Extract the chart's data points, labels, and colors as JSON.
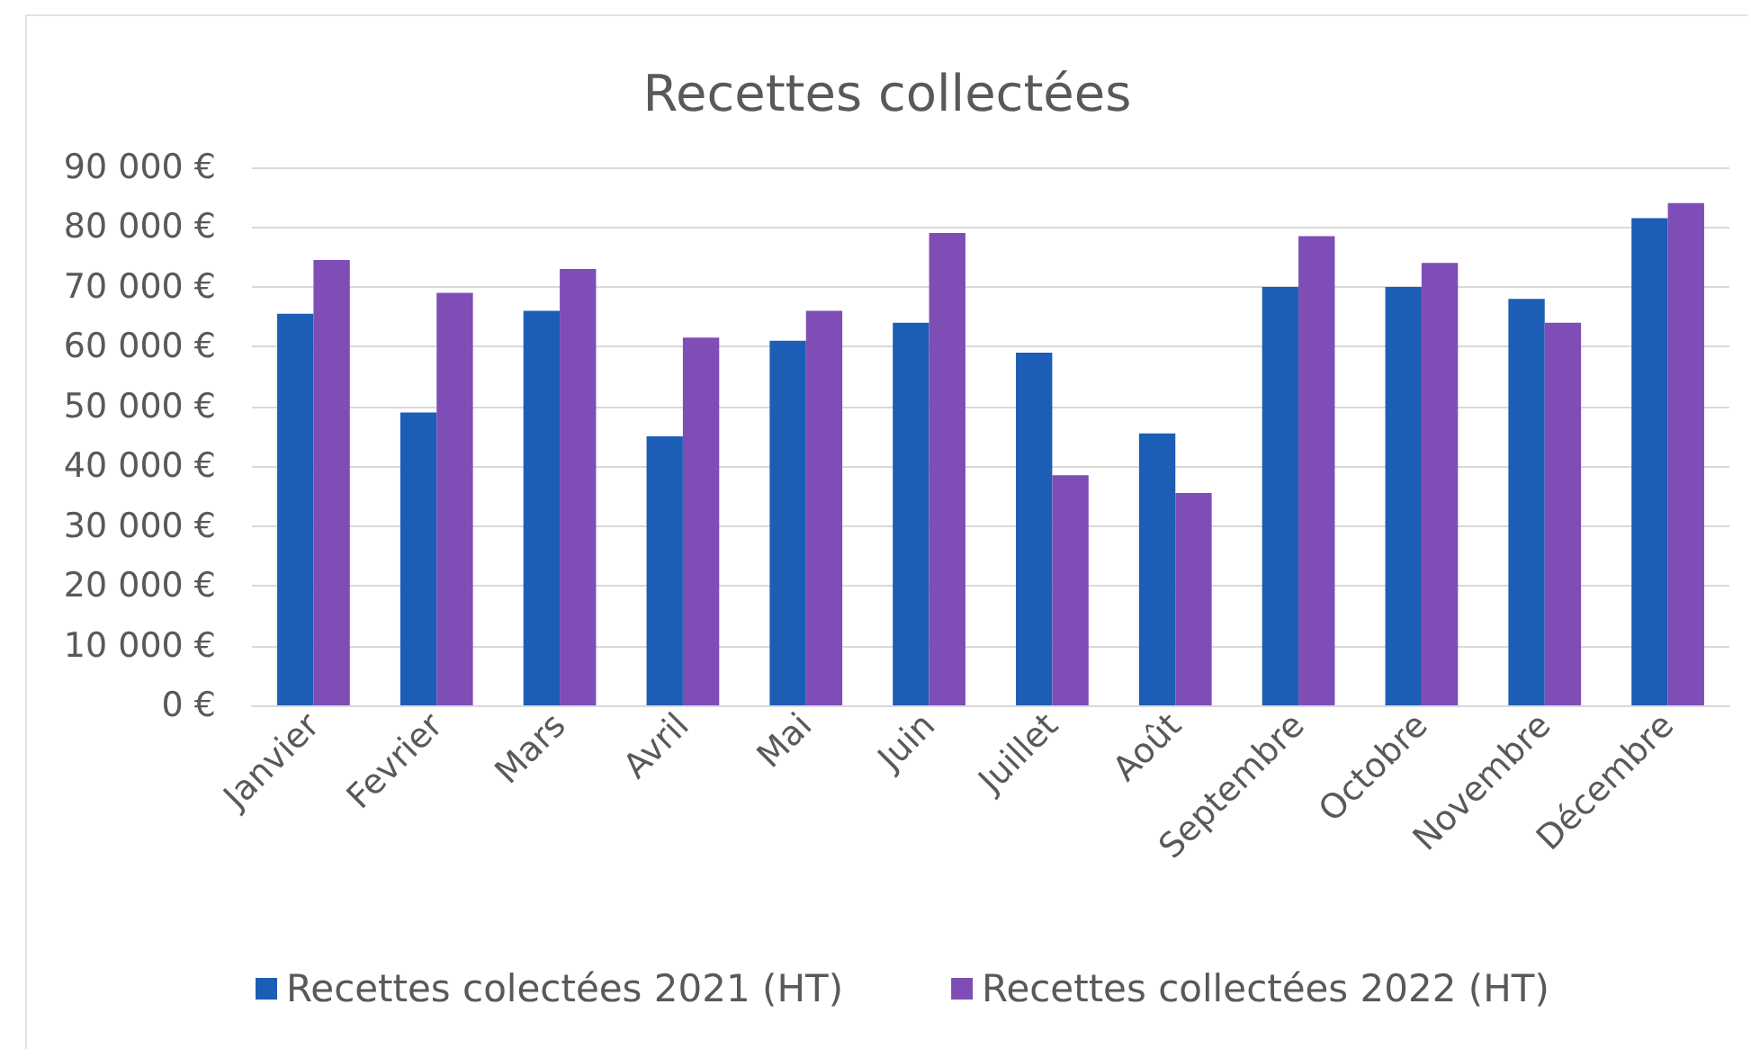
{
  "chart_data": {
    "type": "bar",
    "title": "Recettes collectées",
    "categories": [
      "Janvier",
      "Fevrier",
      "Mars",
      "Avril",
      "Mai",
      "Juin",
      "Juillet",
      "Août",
      "Septembre",
      "Octobre",
      "Novembre",
      "Décembre"
    ],
    "series": [
      {
        "name": "Recettes colectées 2021 (HT)",
        "color": "#1c5db5",
        "values": [
          65500,
          49000,
          66000,
          45000,
          61000,
          64000,
          59000,
          45500,
          70000,
          70000,
          68000,
          81500
        ]
      },
      {
        "name": "Recettes collectées 2022 (HT)",
        "color": "#7e4db6",
        "values": [
          74500,
          69000,
          73000,
          61500,
          66000,
          79000,
          38500,
          35500,
          78500,
          74000,
          64000,
          84000
        ]
      }
    ],
    "ylim": [
      0,
      90000
    ],
    "yticks": [
      {
        "value": 0,
        "label": "0 €"
      },
      {
        "value": 10000,
        "label": "10 000 €"
      },
      {
        "value": 20000,
        "label": "20 000 €"
      },
      {
        "value": 30000,
        "label": "30 000 €"
      },
      {
        "value": 40000,
        "label": "40 000 €"
      },
      {
        "value": 50000,
        "label": "50 000 €"
      },
      {
        "value": 60000,
        "label": "60 000 €"
      },
      {
        "value": 70000,
        "label": "70 000 €"
      },
      {
        "value": 80000,
        "label": "80 000 €"
      },
      {
        "value": 90000,
        "label": "90 000 €"
      }
    ],
    "grid": "y",
    "legend": "bottom"
  }
}
